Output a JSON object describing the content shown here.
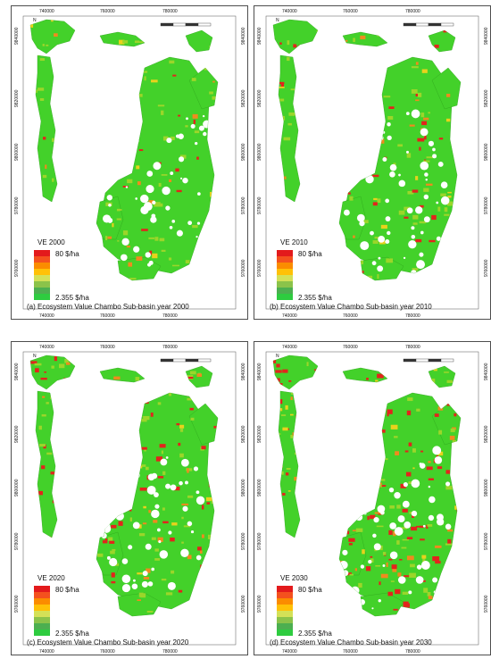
{
  "panels": [
    {
      "id": "a",
      "ve_label": "VE 2000",
      "legend_max": "80 $/ha",
      "legend_min": "2.355 $/ha",
      "caption": "(a) Ecosystem Value Chambo Sub-basin year 2000",
      "top_ticks": [
        "740000",
        "760000",
        "780000"
      ],
      "left_ticks": [
        "9840000",
        "9820000",
        "9800000",
        "9780000",
        "9760000"
      ],
      "red_share": 0.05
    },
    {
      "id": "b",
      "ve_label": "VE 2010",
      "legend_max": "80 $/ha",
      "legend_min": "2.355 $/ha",
      "caption": "(b) Ecosystem Value Chambo Sub-basin year 2010",
      "top_ticks": [
        "740000",
        "760000",
        "780000"
      ],
      "left_ticks": [
        "9840000",
        "9820000",
        "9800000",
        "9780000",
        "9760000"
      ],
      "red_share": 0.12
    },
    {
      "id": "c",
      "ve_label": "VE 2020",
      "legend_max": "80 $/ha",
      "legend_min": "2.355 $/ha",
      "caption": "(c) Ecosystem Value Chambo Sub-basin year 2020",
      "top_ticks": [
        "740000",
        "760000",
        "780000"
      ],
      "left_ticks": [
        "9840000",
        "9820000",
        "9800000",
        "9780000",
        "9760000"
      ],
      "red_share": 0.22
    },
    {
      "id": "d",
      "ve_label": "VE 2030",
      "legend_max": "80 $/ha",
      "legend_min": "2.355 $/ha",
      "caption": "(d) Ecosystem Value Chambo Sub-basin year 2030",
      "top_ticks": [
        "740000",
        "760000",
        "780000"
      ],
      "left_ticks": [
        "9840000",
        "9820000",
        "9800000",
        "9780000",
        "9760000"
      ],
      "red_share": 0.35
    }
  ],
  "north_label": "N",
  "legend_colors": [
    "#e31a1c",
    "#f4511e",
    "#fb8c00",
    "#ffc107",
    "#d4e157",
    "#8bc34a",
    "#4caf50",
    "#2ecc40"
  ],
  "map_colors": {
    "green": "#43d12a",
    "lime": "#9bd62a",
    "yellow": "#e8d21c",
    "orange": "#f08a1e",
    "red": "#e3241c"
  }
}
